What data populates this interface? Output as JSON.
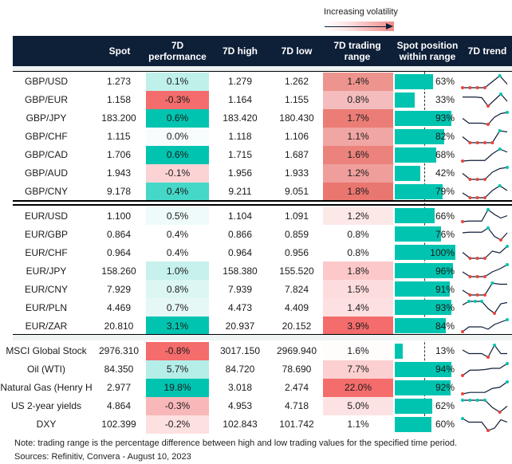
{
  "chart_data": {
    "type": "table",
    "legend": {
      "label": "Increasing volatility"
    },
    "columns": [
      "",
      "Spot",
      "7D performance",
      "7D high",
      "7D low",
      "7D trading range",
      "Spot position within range",
      "7D trend"
    ],
    "sections": [
      {
        "rows": [
          {
            "name": "GBP/USD",
            "spot": "1.273",
            "perf": "0.1%",
            "perf_color": "#bff0ea",
            "high": "1.279",
            "low": "1.262",
            "range": "1.4%",
            "range_color": "#ee948e",
            "position": 63,
            "position_label": "63%",
            "trend": [
              0,
              0,
              0,
              0,
              0.5,
              1,
              0.3
            ]
          },
          {
            "name": "GBP/EUR",
            "spot": "1.158",
            "perf": "-0.3%",
            "perf_color": "#f46c6c",
            "high": "1.164",
            "low": "1.155",
            "range": "0.8%",
            "range_color": "#f4bcbc",
            "position": 33,
            "position_label": "33%",
            "trend": [
              0.75,
              0.75,
              0.75,
              0.7,
              0,
              0.5,
              1,
              0.4
            ]
          },
          {
            "name": "GBP/JPY",
            "spot": "183.200",
            "perf": "0.6%",
            "perf_color": "#00c4b0",
            "high": "183.420",
            "low": "180.430",
            "range": "1.7%",
            "range_color": "#eb7c76",
            "position": 93,
            "position_label": "93%",
            "trend": [
              0.5,
              0.1,
              0.1,
              0.1,
              0,
              0.6,
              0.9,
              1
            ]
          },
          {
            "name": "GBP/CHF",
            "spot": "1.115",
            "perf": "0.0%",
            "perf_color": "#f7fdfc",
            "high": "1.118",
            "low": "1.106",
            "range": "1.1%",
            "range_color": "#f0a6a3",
            "position": 82,
            "position_label": "82%",
            "trend": [
              0.5,
              0,
              0,
              0,
              0,
              1,
              0.9
            ]
          },
          {
            "name": "GBP/CAD",
            "spot": "1.706",
            "perf": "0.6%",
            "perf_color": "#00c4b0",
            "high": "1.715",
            "low": "1.687",
            "range": "1.6%",
            "range_color": "#ec827c",
            "position": 68,
            "position_label": "68%",
            "trend": [
              0,
              0.05,
              0.05,
              0.05,
              0.6,
              1,
              0.75
            ]
          },
          {
            "name": "GBP/AUD",
            "spot": "1.943",
            "perf": "-0.1%",
            "perf_color": "#fcd3d5",
            "high": "1.956",
            "low": "1.933",
            "range": "1.2%",
            "range_color": "#ef9e9b",
            "position": 42,
            "position_label": "42%",
            "trend": [
              0.5,
              0,
              0,
              0,
              0.6,
              0.9,
              1
            ]
          },
          {
            "name": "GBP/CNY",
            "spot": "9.178",
            "perf": "0.4%",
            "perf_color": "#45d8c8",
            "high": "9.211",
            "low": "9.051",
            "range": "1.8%",
            "range_color": "#ea7670",
            "position": 79,
            "position_label": "79%",
            "trend": [
              0.4,
              0,
              0,
              0,
              0.6,
              1,
              0.6
            ]
          }
        ]
      },
      {
        "rows": [
          {
            "name": "EUR/USD",
            "spot": "1.100",
            "perf": "0.5%",
            "perf_color": "#effbfa",
            "high": "1.104",
            "low": "1.091",
            "range": "1.2%",
            "range_color": "#fde8e8",
            "position": 66,
            "position_label": "66%",
            "trend": [
              0,
              0.05,
              0.05,
              0.05,
              1,
              0.6,
              0.3,
              0.5
            ]
          },
          {
            "name": "EUR/GBP",
            "spot": "0.864",
            "perf": "0.4%",
            "perf_color": "#ffffff",
            "high": "0.866",
            "low": "0.859",
            "range": "0.8%",
            "range_color": "#ffffff",
            "position": 76,
            "position_label": "76%",
            "trend": [
              0.6,
              0.65,
              0.65,
              0.65,
              1,
              0.3,
              0,
              0.6
            ]
          },
          {
            "name": "EUR/CHF",
            "spot": "0.964",
            "perf": "0.4%",
            "perf_color": "#ffffff",
            "high": "0.964",
            "low": "0.956",
            "range": "0.8%",
            "range_color": "#ffffff",
            "position": 100,
            "position_label": "100%",
            "trend": [
              0.5,
              0,
              0,
              0,
              0.6,
              0.45,
              1
            ]
          },
          {
            "name": "EUR/JPY",
            "spot": "158.260",
            "perf": "1.0%",
            "perf_color": "#c6f1ec",
            "high": "158.380",
            "low": "155.520",
            "range": "1.8%",
            "range_color": "#fcc8c9",
            "position": 96,
            "position_label": "96%",
            "trend": [
              0.4,
              0,
              0,
              0,
              0.4,
              0.65,
              1
            ]
          },
          {
            "name": "EUR/CNY",
            "spot": "7.929",
            "perf": "0.8%",
            "perf_color": "#dcf6f3",
            "high": "7.939",
            "low": "7.824",
            "range": "1.5%",
            "range_color": "#fddcde",
            "position": 91,
            "position_label": "91%",
            "trend": [
              0.4,
              0,
              0,
              0,
              1,
              0.9,
              0.9
            ]
          },
          {
            "name": "EUR/PLN",
            "spot": "4.469",
            "perf": "0.7%",
            "perf_color": "#e6f8f6",
            "high": "4.473",
            "low": "4.409",
            "range": "1.4%",
            "range_color": "#fde0e1",
            "position": 93,
            "position_label": "93%",
            "trend": [
              0.7,
              1,
              1,
              1,
              0.4,
              0,
              0.8,
              0.9
            ]
          },
          {
            "name": "EUR/ZAR",
            "spot": "20.810",
            "perf": "3.1%",
            "perf_color": "#00c4b0",
            "high": "20.937",
            "low": "20.152",
            "range": "3.9%",
            "range_color": "#f46c6c",
            "position": 84,
            "position_label": "84%",
            "trend": [
              0,
              0.4,
              0.4,
              0.4,
              0.2,
              0.6,
              0.8,
              1
            ]
          }
        ]
      },
      {
        "rows": [
          {
            "name": "MSCI Global Stock",
            "spot": "2976.310",
            "perf": "-0.8%",
            "perf_color": "#f46c6c",
            "high": "3017.150",
            "low": "2969.940",
            "range": "1.6%",
            "range_color": "#fffcfc",
            "position": 13,
            "position_label": "13%",
            "trend": [
              0.6,
              0.3,
              0.3,
              0.3,
              0,
              1,
              0.3,
              0.3
            ]
          },
          {
            "name": "Oil (WTI)",
            "spot": "84.350",
            "perf": "5.7%",
            "perf_color": "#b5eee8",
            "high": "84.720",
            "low": "78.690",
            "range": "7.7%",
            "range_color": "#fccfd0",
            "position": 94,
            "position_label": "94%",
            "trend": [
              0,
              0.45,
              0.45,
              0.5,
              0.6,
              0.6,
              1
            ]
          },
          {
            "name": "Natural Gas (Henry H",
            "spot": "2.977",
            "perf": "19.8%",
            "perf_color": "#00c4b0",
            "high": "3.018",
            "low": "2.474",
            "range": "22.0%",
            "range_color": "#f46c6c",
            "position": 92,
            "position_label": "92%",
            "trend": [
              0,
              0.12,
              0.12,
              0.12,
              0.45,
              0.55,
              1
            ]
          },
          {
            "name": "US 2-year yields",
            "spot": "4.864",
            "perf": "-0.3%",
            "perf_color": "#f8b7b9",
            "high": "4.953",
            "low": "4.718",
            "range": "5.0%",
            "range_color": "#fde2e3",
            "position": 62,
            "position_label": "62%",
            "trend": [
              1,
              1,
              1,
              1,
              0.4,
              0,
              0.5
            ]
          },
          {
            "name": "DXY",
            "spot": "102.399",
            "perf": "-0.2%",
            "perf_color": "#fde0e0",
            "high": "102.843",
            "low": "101.742",
            "range": "1.1%",
            "range_color": "#ffffff",
            "position": 60,
            "position_label": "60%",
            "trend": [
              1,
              0.7,
              0.7,
              0.7,
              0,
              0.2,
              0.9,
              0.7
            ]
          }
        ]
      }
    ],
    "note": "Note: trading range is the percentage difference between high and low trading values for the specified time period.",
    "sources": "Sources: Refinitiv, Convera - August 10, 2023",
    "colors": {
      "header": "#0e1f38",
      "bar": "#00c4b0",
      "trend_line": "#0e1f38",
      "trend_min": "#e8453c",
      "trend_max": "#00c4b0"
    }
  }
}
